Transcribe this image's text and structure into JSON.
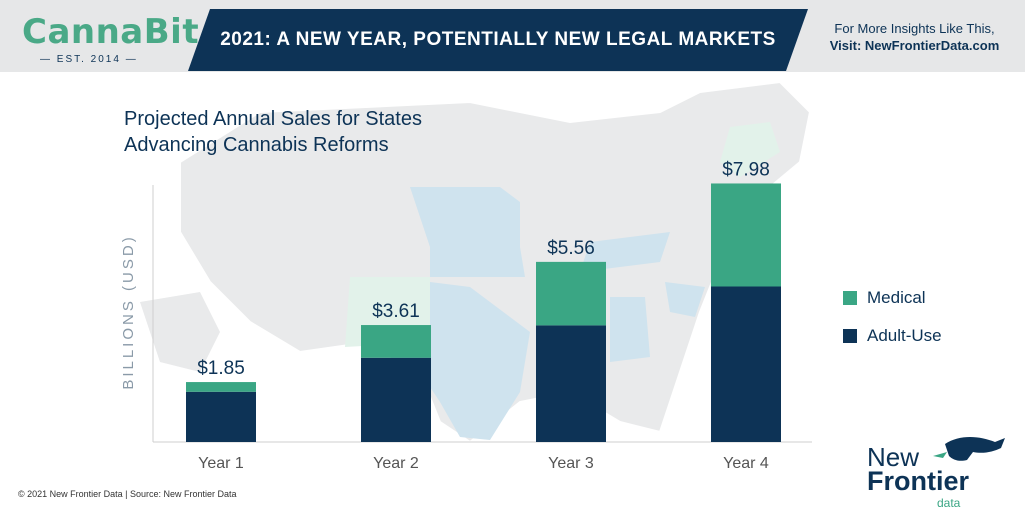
{
  "header": {
    "logo_name": "CannaBit",
    "logo_sub": "— EST. 2014 —",
    "banner": "2021: A NEW YEAR, POTENTIALLY NEW LEGAL MARKETS",
    "insights_line1": "For More Insights Like This,",
    "insights_line2": "Visit: NewFrontierData.com"
  },
  "chart_data": {
    "type": "bar",
    "title_lines": [
      "Projected Annual Sales for States",
      "Advancing Cannabis Reforms"
    ],
    "categories": [
      "Year 1",
      "Year 2",
      "Year 3",
      "Year 4"
    ],
    "totals_labels": [
      "$1.85",
      "$3.61",
      "$5.56",
      "$7.98"
    ],
    "ylabel": "BILLIONS (USD)",
    "ylim": [
      0,
      8.55
    ],
    "stacked": true,
    "series": [
      {
        "name": "Adult-Use",
        "color": "#0d3356",
        "values": [
          1.55,
          2.6,
          3.6,
          4.8
        ]
      },
      {
        "name": "Medical",
        "color": "#3aa684",
        "values": [
          0.3,
          1.01,
          1.96,
          3.18
        ]
      }
    ],
    "legend_position": "right"
  },
  "legend": [
    {
      "label": "Medical",
      "color": "#3aa684"
    },
    {
      "label": "Adult-Use",
      "color": "#0d3356"
    }
  ],
  "footer": "© 2021 New Frontier Data | Source: New Frontier Data",
  "brand": {
    "line1": "New",
    "line2": "Frontier",
    "line3": "data"
  }
}
